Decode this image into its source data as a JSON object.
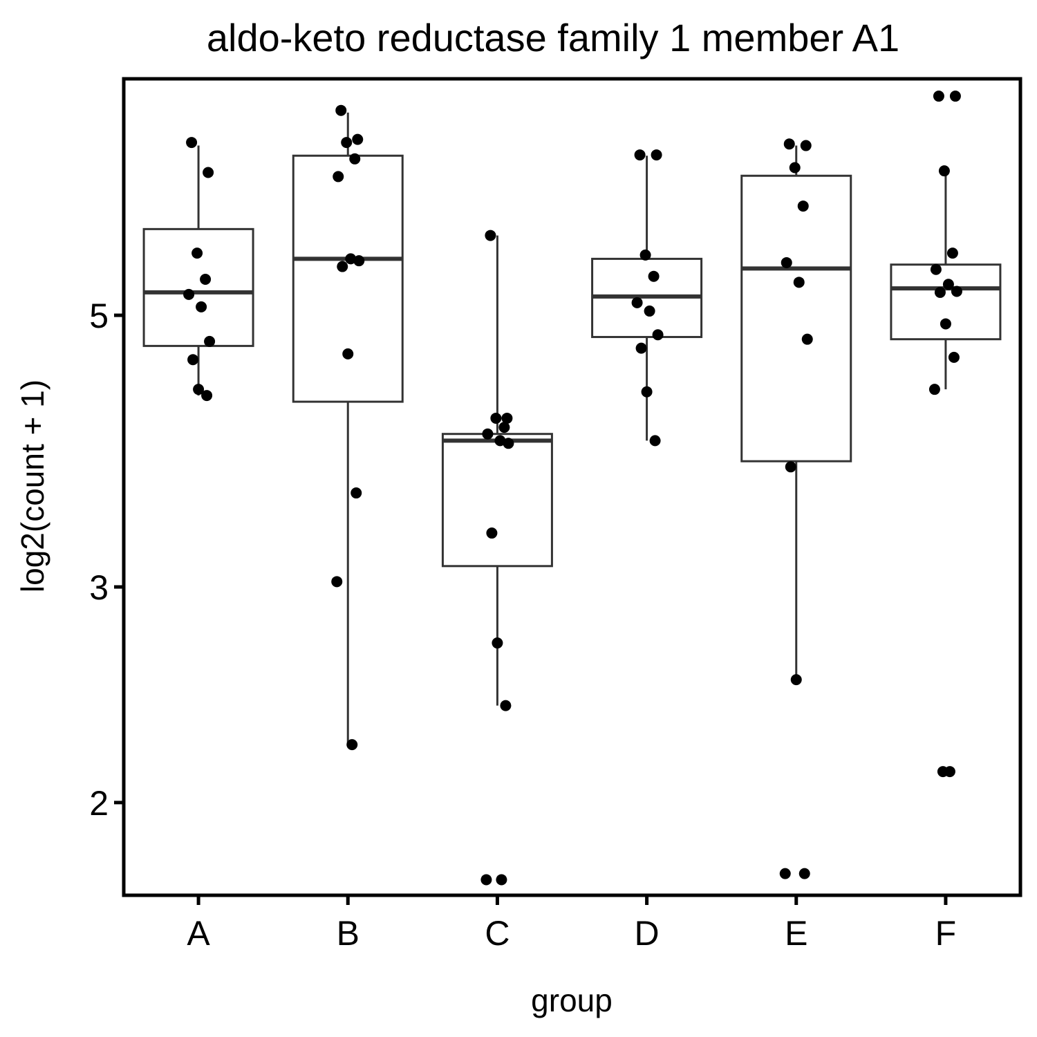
{
  "chart_data": {
    "type": "boxplot",
    "title": "aldo-keto reductase family 1 member A1",
    "xlabel": "group",
    "ylabel": "log2(count + 1)",
    "y_scale": "log2",
    "ylim": [
      1.68,
      7.8
    ],
    "y_ticks": [
      2,
      3,
      5
    ],
    "categories": [
      "A",
      "B",
      "C",
      "D",
      "E",
      "F"
    ],
    "boxes": [
      {
        "group": "A",
        "whisker_low": 4.3,
        "q1": 4.72,
        "median": 5.22,
        "q3": 5.88,
        "whisker_high": 6.88
      },
      {
        "group": "B",
        "whisker_low": 2.23,
        "q1": 4.25,
        "median": 5.56,
        "q3": 6.75,
        "whisker_high": 7.32
      },
      {
        "group": "C",
        "whisker_low": 2.4,
        "q1": 3.12,
        "median": 3.95,
        "q3": 4.0,
        "whisker_high": 5.81
      },
      {
        "group": "D",
        "whisker_low": 3.95,
        "q1": 4.8,
        "median": 5.18,
        "q3": 5.56,
        "whisker_high": 6.75
      },
      {
        "group": "E",
        "whisker_low": 2.52,
        "q1": 3.8,
        "median": 5.46,
        "q3": 6.5,
        "whisker_high": 6.88
      },
      {
        "group": "F",
        "whisker_low": 4.35,
        "q1": 4.78,
        "median": 5.26,
        "q3": 5.5,
        "whisker_high": 6.55
      }
    ],
    "points": {
      "A": [
        6.92,
        6.54,
        5.62,
        5.35,
        5.2,
        5.08,
        4.76,
        4.6,
        4.35,
        4.3
      ],
      "B": [
        7.35,
        6.96,
        6.92,
        6.71,
        6.49,
        5.56,
        5.54,
        5.48,
        4.65,
        3.58,
        3.03,
        2.23
      ],
      "C": [
        5.81,
        4.12,
        4.12,
        4.05,
        4.0,
        3.95,
        3.93,
        3.32,
        2.7,
        2.4,
        1.73,
        1.73
      ],
      "D": [
        6.76,
        6.76,
        5.6,
        5.38,
        5.12,
        5.04,
        4.82,
        4.7,
        4.33,
        3.95
      ],
      "E": [
        6.9,
        6.88,
        6.6,
        6.14,
        5.52,
        5.32,
        4.78,
        3.76,
        2.52,
        1.75,
        1.75
      ],
      "F": [
        7.55,
        7.55,
        6.56,
        5.62,
        5.45,
        5.3,
        5.23,
        5.22,
        4.92,
        4.62,
        4.35,
        2.12,
        2.12
      ]
    },
    "grid": false,
    "legend": "none"
  }
}
